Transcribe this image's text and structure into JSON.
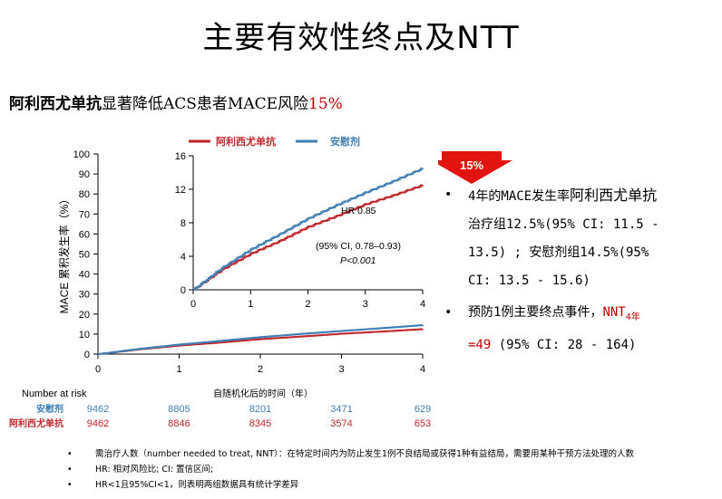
{
  "title": "主要有效性终点及NTT",
  "subtitle": {
    "drug": "阿利西尤单抗",
    "middle": "显著降低ACS患者MACE风险",
    "pct": "15%"
  },
  "colors": {
    "drug": "#c0272d",
    "placebo": "#3f7fb4",
    "red_text": "#c00000",
    "arrow": "#e3140f"
  },
  "legend": {
    "drug": "阿利西尤单抗",
    "placebo": "安慰剂"
  },
  "arrow_label": "15%",
  "chart_data": {
    "type": "line",
    "ylabel": "MACE 累积发生率（%）",
    "xlabel": "自随机化后的时间（年）",
    "ylim": [
      0,
      100
    ],
    "yticks": [
      0,
      10,
      20,
      30,
      40,
      50,
      60,
      70,
      80,
      90,
      100
    ],
    "xlim": [
      0,
      4
    ],
    "xticks": [
      0,
      1,
      2,
      3,
      4
    ],
    "series": [
      {
        "name": "阿利西尤单抗",
        "x": [
          0,
          0.25,
          0.5,
          1,
          1.5,
          2,
          2.5,
          3,
          3.5,
          4
        ],
        "y": [
          0,
          1.2,
          2.4,
          4.3,
          5.8,
          7.5,
          8.8,
          10.2,
          11.3,
          12.5
        ]
      },
      {
        "name": "安慰剂",
        "x": [
          0,
          0.25,
          0.5,
          1,
          1.5,
          2,
          2.5,
          3,
          3.5,
          4
        ],
        "y": [
          0,
          1.3,
          2.6,
          4.8,
          6.6,
          8.5,
          10.1,
          11.6,
          13.0,
          14.5
        ]
      }
    ],
    "inset": {
      "ylim": [
        0,
        16
      ],
      "yticks": [
        0,
        4,
        8,
        12,
        16
      ],
      "xlim": [
        0,
        4
      ],
      "xticks": [
        0,
        1,
        2,
        3,
        4
      ],
      "annotation": {
        "hr": "HR 0.85",
        "ci": "(95% CI, 0.78–0.93)",
        "p": "P<0.001"
      }
    },
    "risk_table": {
      "title": "Number at risk",
      "rows": [
        {
          "name": "安慰剂",
          "values": [
            "9462",
            "8805",
            "8201",
            "3471",
            "629"
          ]
        },
        {
          "name": "阿利西尤单抗",
          "values": [
            "9462",
            "8846",
            "8345",
            "3574",
            "653"
          ]
        }
      ]
    }
  },
  "bullets": {
    "b1_l1a": "4年的MACE发生率",
    "b1_l1b": "阿利西尤单抗",
    "b1_l2": "治疗组12.5%(95% CI: 11.5 -",
    "b1_l3": "13.5) ; 安慰剂组14.5%(95%",
    "b1_l4": "CI: 13.5 - 15.6)",
    "b2_l1a": "预防1例主要终点事件，",
    "b2_nnt": "NNT",
    "b2_sub": "4年",
    "b2_l2a": "=49",
    "b2_l2b": " (95% CI: 28 - 164)"
  },
  "footnotes": [
    "需治疗人数（number needed to treat, NNT）：在特定时间内为防止发生1例不良结局或获得1种有益结局，需要用某种干预方法处理的人数",
    "HR: 相对风险比; CI: 置信区间;",
    "HR<1且95%CI<1，则表明两组数据具有统计学差异"
  ]
}
